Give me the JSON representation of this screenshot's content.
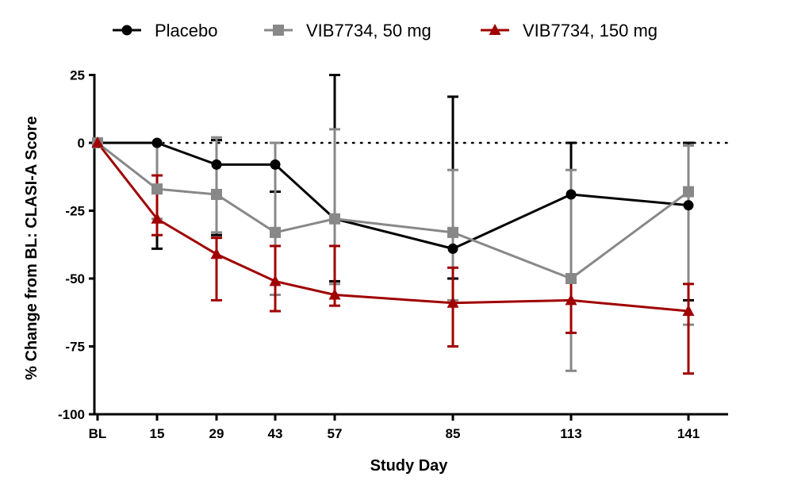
{
  "chart_data": {
    "type": "line",
    "title": "",
    "xlabel": "Study Day",
    "ylabel": "% Change from BL: CLASI-A Score",
    "x_categories": [
      "BL",
      "15",
      "29",
      "43",
      "57",
      "85",
      "113",
      "141"
    ],
    "x_values": [
      1,
      15,
      29,
      43,
      57,
      85,
      113,
      141
    ],
    "xlim": [
      -1,
      146
    ],
    "ylim": [
      -100,
      25
    ],
    "yticks": [
      25,
      0,
      -25,
      -50,
      -75,
      -100
    ],
    "ytick_labels": [
      "25",
      "0",
      "-25",
      "-50",
      "-75",
      "-100"
    ],
    "reference_line": {
      "y": 0,
      "style": "dotted"
    },
    "grid": false,
    "legend_position": "top",
    "series": [
      {
        "name": "Placebo",
        "color": "#000000",
        "marker": "circle",
        "values": [
          0,
          0,
          -8,
          -8,
          -28,
          -39,
          -19,
          -23
        ],
        "err_upper": [
          0,
          0,
          1,
          0,
          25,
          17,
          0,
          0
        ],
        "err_lower": [
          0,
          -39,
          -34,
          -18,
          -51,
          -50,
          -50,
          -58
        ]
      },
      {
        "name": "VIB7734, 50 mg",
        "color": "#888888",
        "marker": "square",
        "values": [
          0,
          -17,
          -19,
          -33,
          -28,
          -33,
          -50,
          -18
        ],
        "err_upper": [
          0,
          0,
          2,
          0,
          5,
          -10,
          -10,
          -1
        ],
        "err_lower": [
          0,
          -28,
          -33,
          -56,
          -52,
          -58,
          -84,
          -67
        ]
      },
      {
        "name": "VIB7734, 150 mg",
        "color": "#A00000",
        "marker": "triangle",
        "values": [
          0,
          -28,
          -41,
          -51,
          -56,
          -59,
          -58,
          -62
        ],
        "err_upper": [
          0,
          -12,
          -35,
          -38,
          -38,
          -46,
          -50,
          -52
        ],
        "err_lower": [
          0,
          -34,
          -58,
          -62,
          -60,
          -75,
          -70,
          -85
        ]
      }
    ]
  }
}
